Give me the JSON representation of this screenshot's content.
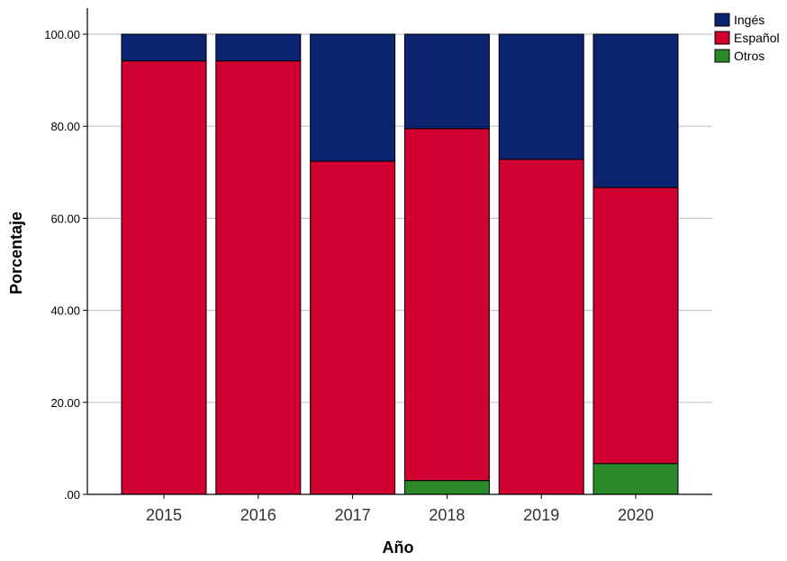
{
  "chart_data": {
    "type": "bar",
    "stacked": true,
    "percent": true,
    "title": "",
    "xlabel": "Año",
    "ylabel": "Porcentaje",
    "categories": [
      "2015",
      "2016",
      "2017",
      "2018",
      "2019",
      "2020"
    ],
    "series": [
      {
        "name": "Otros",
        "color": "#2A8A2A",
        "values": [
          0,
          0,
          0,
          3.0,
          0,
          6.7
        ]
      },
      {
        "name": "Español",
        "color": "#D00031",
        "values": [
          94.2,
          94.2,
          72.4,
          76.5,
          72.8,
          60.0
        ]
      },
      {
        "name": "Ingés",
        "color": "#0A2472",
        "values": [
          5.8,
          5.8,
          27.6,
          20.5,
          27.2,
          33.3
        ]
      }
    ],
    "ylim": [
      0,
      100
    ],
    "yticks": [
      0,
      20,
      40,
      60,
      80,
      100
    ],
    "ytick_labels": [
      ".00",
      "20.00",
      "40.00",
      "60.00",
      "80.00",
      "100.00"
    ],
    "grid": true,
    "legend_position": "top-right",
    "legend_order": [
      "Ingés",
      "Español",
      "Otros"
    ]
  }
}
